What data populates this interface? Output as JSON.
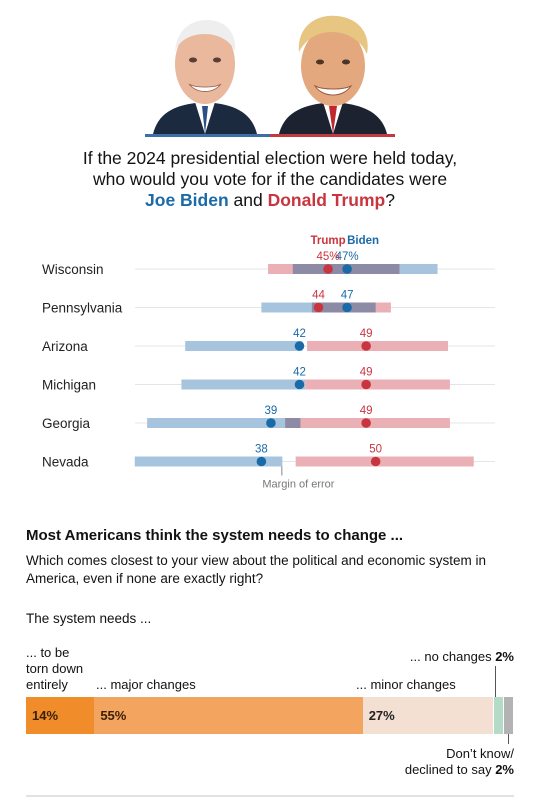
{
  "colors": {
    "biden": "#1a6aa8",
    "trump": "#c9353e",
    "biden_bar": "#a7c4de",
    "trump_bar": "#eab0b5",
    "overlap": "#8d8aa5"
  },
  "portraits": [
    {
      "name": "joe-biden-portrait",
      "bg": "#3e6ea8"
    },
    {
      "name": "donald-trump-portrait",
      "bg": "#c23a3f"
    }
  ],
  "headline": {
    "line1": "If the 2024 presidential election were held today,",
    "line2": "who would you vote for if the candidates were",
    "biden": "Joe Biden",
    "and": " and ",
    "trump": "Donald Trump",
    "qmark": "?"
  },
  "chart_data": [
    {
      "type": "scatter",
      "title": "If the 2024 presidential election were held today, who would you vote for if the candidates were Joe Biden and Donald Trump?",
      "series_labels": {
        "trump": "Trump",
        "biden": "Biden"
      },
      "xlim": [
        20,
        66
      ],
      "annotation": "Margin of error",
      "states": [
        {
          "state": "Wisconsin",
          "trump": 45,
          "biden": 47,
          "trump_moe": [
            38.7,
            52.5
          ],
          "biden_moe": [
            41.3,
            56.5
          ],
          "label_suffix": "%"
        },
        {
          "state": "Pennsylvania",
          "trump": 44,
          "biden": 47,
          "trump_moe": [
            43.3,
            51.6
          ],
          "biden_moe": [
            38.0,
            50.0
          ],
          "label_suffix": ""
        },
        {
          "state": "Arizona",
          "trump": 49,
          "biden": 42,
          "trump_moe": [
            42.8,
            57.6
          ],
          "biden_moe": [
            30.0,
            42.3
          ],
          "label_suffix": ""
        },
        {
          "state": "Michigan",
          "trump": 49,
          "biden": 42,
          "trump_moe": [
            42.6,
            57.8
          ],
          "biden_moe": [
            29.6,
            42.6
          ],
          "label_suffix": ""
        },
        {
          "state": "Georgia",
          "trump": 49,
          "biden": 39,
          "trump_moe": [
            40.5,
            57.8
          ],
          "biden_moe": [
            26.0,
            42.1
          ],
          "label_suffix": ""
        },
        {
          "state": "Nevada",
          "trump": 50,
          "biden": 38,
          "trump_moe": [
            41.6,
            60.3
          ],
          "biden_moe": [
            24.7,
            40.2
          ],
          "label_suffix": ""
        }
      ]
    },
    {
      "type": "bar",
      "title": "Most Americans think the system needs to change ...",
      "categories": [
        "... to be torn down entirely",
        "... major changes",
        "... minor changes",
        "... no changes",
        "Don’t know/ declined to say"
      ],
      "values": [
        14,
        55,
        27,
        2,
        2
      ],
      "value_labels": [
        "14%",
        "55%",
        "27%",
        "",
        ""
      ],
      "colors": [
        "#f08c2a",
        "#f3a45e",
        "#f4dfd3",
        "#b4dac8",
        "#b3b3b3"
      ]
    }
  ],
  "section2": {
    "heading": "Most Americans think the system needs to change ...",
    "question": "Which comes closest to your view about the political and economic system in America, even if none are exactly right?",
    "lead": "The system needs ...",
    "label_torn": "... to be\ntorn down\nentirely",
    "label_major": "... major changes",
    "label_minor": "... minor changes",
    "label_nochange_text": "... no changes",
    "label_nochange_pct": "2%",
    "label_dk_text": "Don’t know/\ndeclined to say",
    "label_dk_pct": "2%"
  }
}
